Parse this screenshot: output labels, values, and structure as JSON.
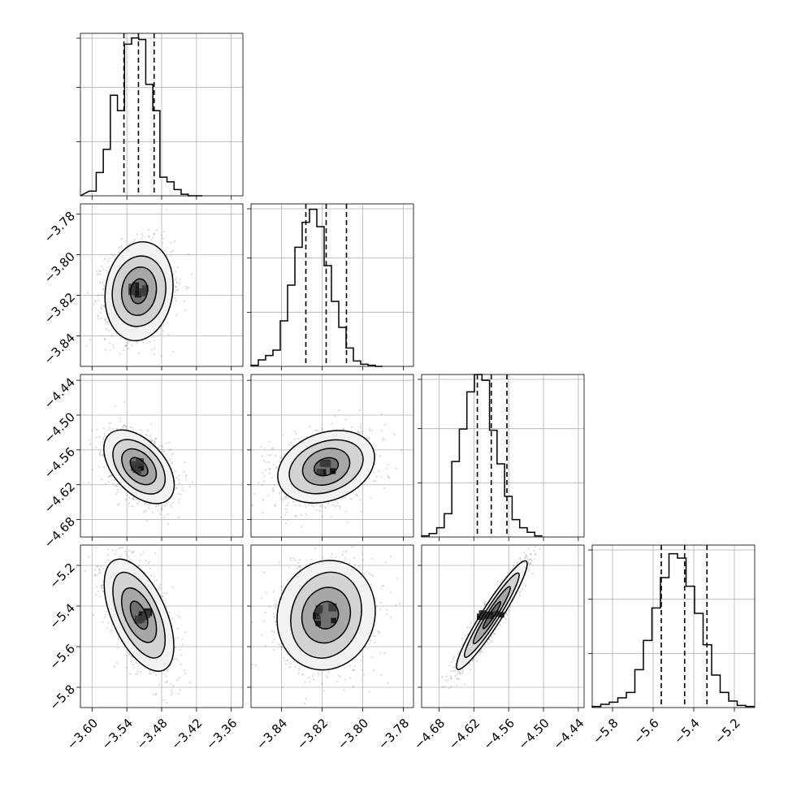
{
  "chart_data": {
    "type": "corner",
    "grid": true,
    "parameters": [
      {
        "range": [
          -3.62,
          -3.34
        ],
        "hist_x_start": -3.605,
        "hist_bin_width": 0.0122,
        "hist_counts": [
          3,
          15,
          30,
          65,
          55,
          98,
          102,
          101,
          72,
          55,
          12,
          9,
          4,
          1,
          0,
          0
        ],
        "hist_ylim": [
          0,
          105
        ],
        "quantiles": [
          -3.545,
          -3.52,
          -3.493
        ],
        "ticks": [
          -3.6,
          -3.54,
          -3.48,
          -3.42,
          -3.36
        ],
        "tick_labels": [
          "−3.60",
          "−3.54",
          "−3.48",
          "−3.42",
          "−3.36"
        ],
        "mean": -3.519,
        "sd": 0.024
      },
      {
        "range": [
          -3.855,
          -3.775
        ],
        "hist_x_start": -3.855,
        "hist_bin_width": 0.0036,
        "hist_counts": [
          1,
          6,
          10,
          15,
          42,
          75,
          110,
          133,
          145,
          129,
          93,
          60,
          36,
          17,
          5,
          2,
          1,
          0
        ],
        "hist_ylim": [
          0,
          150
        ],
        "quantiles": [
          -3.828,
          -3.818,
          -3.808
        ],
        "ticks": [
          -3.84,
          -3.82,
          -3.8,
          -3.78
        ],
        "tick_labels": [
          "−3.84",
          "−3.82",
          "−3.80",
          "−3.78"
        ],
        "y_ticks": [
          -3.78,
          -3.8,
          -3.82,
          -3.84
        ],
        "y_tick_labels": [
          "−3.78",
          "−3.80",
          "−3.82",
          "−3.84"
        ],
        "mean": -3.818,
        "sd": 0.0095
      },
      {
        "range": [
          -4.71,
          -4.43
        ],
        "hist_x_start": -4.71,
        "hist_bin_width": 0.013,
        "hist_counts": [
          1,
          3,
          8,
          20,
          65,
          93,
          125,
          140,
          135,
          92,
          63,
          35,
          15,
          8,
          4,
          1
        ],
        "hist_ylim": [
          0,
          140
        ],
        "quantiles": [
          -4.614,
          -4.59,
          -4.563
        ],
        "ticks": [
          -4.68,
          -4.62,
          -4.56,
          -4.5,
          -4.44
        ],
        "tick_labels": [
          "−4.68",
          "−4.62",
          "−4.56",
          "−4.50",
          "−4.44"
        ],
        "y_ticks": [
          -4.44,
          -4.5,
          -4.56,
          -4.62,
          -4.68
        ],
        "y_tick_labels": [
          "−4.44",
          "−4.50",
          "−4.56",
          "−4.62",
          "−4.68"
        ],
        "mean": -4.589,
        "sd": 0.025
      },
      {
        "range": [
          -5.9,
          -5.1
        ],
        "hist_x_start": -5.9,
        "hist_bin_width": 0.042,
        "hist_counts": [
          1,
          3,
          5,
          9,
          14,
          35,
          62,
          92,
          120,
          142,
          138,
          112,
          87,
          58,
          30,
          14,
          6,
          2,
          1
        ],
        "hist_ylim": [
          0,
          150
        ],
        "quantiles": [
          -5.56,
          -5.445,
          -5.335
        ],
        "ticks": [
          -5.8,
          -5.6,
          -5.4,
          -5.2
        ],
        "tick_labels": [
          "−5.8",
          "−5.6",
          "−5.4",
          "−5.2"
        ],
        "y_ticks": [
          -5.2,
          -5.4,
          -5.6,
          -5.8
        ],
        "y_tick_labels": [
          "−5.2",
          "−5.4",
          "−5.6",
          "−5.8"
        ],
        "mean": -5.445,
        "sd": 0.11
      }
    ],
    "correlations": {
      "1-0": 0.1,
      "2-0": -0.45,
      "2-1": 0.25,
      "3-0": -0.55,
      "3-1": 0.1,
      "3-2": 0.95
    },
    "contour_levels_sigma": [
      0.5,
      1.0,
      1.5,
      2.0
    ],
    "scatter_points_per_panel": 1600
  },
  "colors": {
    "axis": "#000000",
    "grid": "#b0b0b0",
    "hist": "#000000",
    "scatter": "#555555",
    "density_dark": "#000000"
  }
}
